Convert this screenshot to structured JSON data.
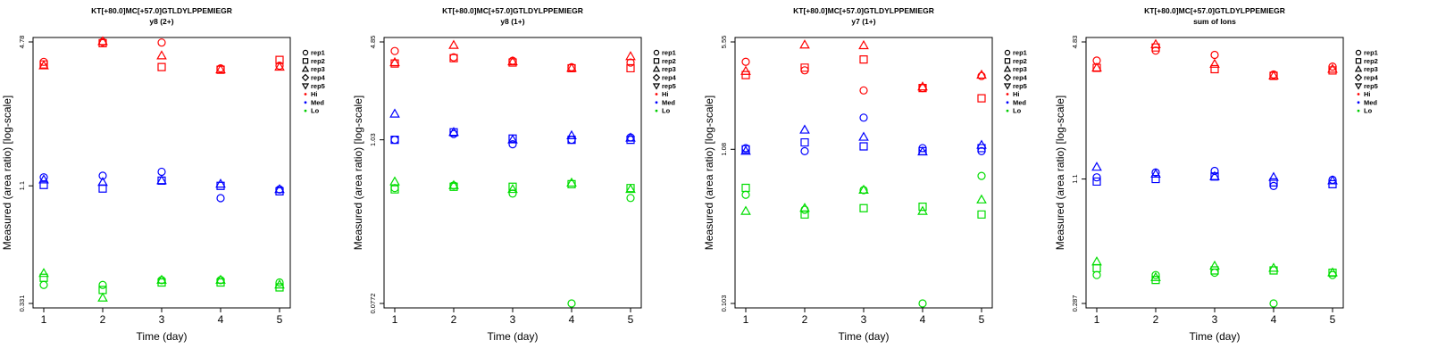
{
  "chart_data": [
    {
      "type": "scatter",
      "title": "KT[+80.0]MC[+57.0]GTLDYLPPEMIEGR",
      "subtitle": "y8 (2+)",
      "xlabel": "Time (day)",
      "ylabel": "Measured (area ratio) [log-scale]",
      "x_ticks": [
        "1",
        "2",
        "3",
        "4",
        "5"
      ],
      "y_ticks": [
        "0.331",
        "1.1",
        "4.78"
      ],
      "ylim": [
        0.331,
        4.78
      ],
      "log_y": true,
      "legend_position": "right",
      "series": [
        {
          "name": "rep1",
          "group": "Hi",
          "shape": "circle",
          "values": [
            [
              1,
              3.9
            ],
            [
              2,
              4.78
            ],
            [
              3,
              4.75
            ],
            [
              4,
              3.65
            ],
            [
              5,
              3.75
            ]
          ]
        },
        {
          "name": "rep2",
          "group": "Hi",
          "shape": "square",
          "values": [
            [
              1,
              3.8
            ],
            [
              2,
              4.72
            ],
            [
              3,
              3.7
            ],
            [
              4,
              3.6
            ],
            [
              5,
              3.98
            ]
          ]
        },
        {
          "name": "rep3",
          "group": "Hi",
          "shape": "triangle-up",
          "values": [
            [
              1,
              3.75
            ],
            [
              2,
              4.8
            ],
            [
              3,
              4.15
            ],
            [
              4,
              3.6
            ],
            [
              5,
              3.7
            ]
          ]
        },
        {
          "name": "rep1",
          "group": "Med",
          "shape": "circle",
          "values": [
            [
              1,
              1.2
            ],
            [
              2,
              1.22
            ],
            [
              3,
              1.27
            ],
            [
              4,
              0.97
            ],
            [
              5,
              1.06
            ]
          ]
        },
        {
          "name": "rep2",
          "group": "Med",
          "shape": "square",
          "values": [
            [
              1,
              1.11
            ],
            [
              2,
              1.07
            ],
            [
              3,
              1.16
            ],
            [
              4,
              1.1
            ],
            [
              5,
              1.04
            ]
          ]
        },
        {
          "name": "rep3",
          "group": "Med",
          "shape": "triangle-up",
          "values": [
            [
              1,
              1.17
            ],
            [
              2,
              1.14
            ],
            [
              3,
              1.16
            ],
            [
              4,
              1.12
            ],
            [
              5,
              1.06
            ]
          ]
        },
        {
          "name": "rep1",
          "group": "Lo",
          "shape": "circle",
          "values": [
            [
              1,
              0.4
            ],
            [
              2,
              0.4
            ],
            [
              3,
              0.42
            ],
            [
              4,
              0.42
            ],
            [
              5,
              0.41
            ]
          ]
        },
        {
          "name": "rep2",
          "group": "Lo",
          "shape": "square",
          "values": [
            [
              1,
              0.43
            ],
            [
              2,
              0.38
            ],
            [
              3,
              0.41
            ],
            [
              4,
              0.41
            ],
            [
              5,
              0.39
            ]
          ]
        },
        {
          "name": "rep3",
          "group": "Lo",
          "shape": "triangle-up",
          "values": [
            [
              1,
              0.45
            ],
            [
              2,
              0.35
            ],
            [
              3,
              0.42
            ],
            [
              4,
              0.42
            ],
            [
              5,
              0.4
            ]
          ]
        }
      ]
    },
    {
      "type": "scatter",
      "title": "KT[+80.0]MC[+57.0]GTLDYLPPEMIEGR",
      "subtitle": "y8 (1+)",
      "xlabel": "Time (day)",
      "ylabel": "Measured (area ratio) [log-scale]",
      "x_ticks": [
        "1",
        "2",
        "3",
        "4",
        "5"
      ],
      "y_ticks": [
        "0.0772",
        "1.03",
        "4.85"
      ],
      "ylim": [
        0.0772,
        4.85
      ],
      "log_y": true,
      "legend_position": "right",
      "series": [
        {
          "name": "rep1",
          "group": "Hi",
          "shape": "circle",
          "values": [
            [
              1,
              4.2
            ],
            [
              2,
              3.8
            ],
            [
              3,
              3.6
            ],
            [
              4,
              3.25
            ],
            [
              5,
              3.5
            ]
          ]
        },
        {
          "name": "rep2",
          "group": "Hi",
          "shape": "square",
          "values": [
            [
              1,
              3.45
            ],
            [
              2,
              3.75
            ],
            [
              3,
              3.5
            ],
            [
              4,
              3.2
            ],
            [
              5,
              3.2
            ]
          ]
        },
        {
          "name": "rep3",
          "group": "Hi",
          "shape": "triangle-up",
          "values": [
            [
              1,
              3.5
            ],
            [
              2,
              4.6
            ],
            [
              3,
              3.55
            ],
            [
              4,
              3.2
            ],
            [
              5,
              3.85
            ]
          ]
        },
        {
          "name": "rep1",
          "group": "Med",
          "shape": "circle",
          "values": [
            [
              1,
              1.03
            ],
            [
              2,
              1.13
            ],
            [
              3,
              0.96
            ],
            [
              4,
              1.03
            ],
            [
              5,
              1.07
            ]
          ]
        },
        {
          "name": "rep2",
          "group": "Med",
          "shape": "square",
          "values": [
            [
              1,
              1.03
            ],
            [
              2,
              1.16
            ],
            [
              3,
              1.05
            ],
            [
              4,
              1.03
            ],
            [
              5,
              1.03
            ]
          ]
        },
        {
          "name": "rep3",
          "group": "Med",
          "shape": "triangle-up",
          "values": [
            [
              1,
              1.55
            ],
            [
              2,
              1.16
            ],
            [
              3,
              1.03
            ],
            [
              4,
              1.1
            ],
            [
              5,
              1.06
            ]
          ]
        },
        {
          "name": "rep1",
          "group": "Lo",
          "shape": "circle",
          "values": [
            [
              1,
              0.48
            ],
            [
              2,
              0.5
            ],
            [
              3,
              0.44
            ],
            [
              4,
              0.0772
            ],
            [
              5,
              0.41
            ]
          ]
        },
        {
          "name": "rep2",
          "group": "Lo",
          "shape": "square",
          "values": [
            [
              1,
              0.47
            ],
            [
              2,
              0.49
            ],
            [
              3,
              0.49
            ],
            [
              4,
              0.51
            ],
            [
              5,
              0.48
            ]
          ]
        },
        {
          "name": "rep3",
          "group": "Lo",
          "shape": "triangle-up",
          "values": [
            [
              1,
              0.53
            ],
            [
              2,
              0.5
            ],
            [
              3,
              0.47
            ],
            [
              4,
              0.52
            ],
            [
              5,
              0.47
            ]
          ]
        }
      ]
    },
    {
      "type": "scatter",
      "title": "KT[+80.0]MC[+57.0]GTLDYLPPEMIEGR",
      "subtitle": "y7 (1+)",
      "xlabel": "Time (day)",
      "ylabel": "Measured (area ratio) [log-scale]",
      "x_ticks": [
        "1",
        "2",
        "3",
        "4",
        "5"
      ],
      "y_ticks": [
        "0.103",
        "1.08",
        "5.55"
      ],
      "ylim": [
        0.103,
        5.55
      ],
      "log_y": true,
      "legend_position": "right",
      "series": [
        {
          "name": "rep1",
          "group": "Hi",
          "shape": "circle",
          "values": [
            [
              1,
              4.1
            ],
            [
              2,
              3.6
            ],
            [
              3,
              2.65
            ],
            [
              4,
              2.75
            ],
            [
              5,
              3.3
            ]
          ]
        },
        {
          "name": "rep2",
          "group": "Hi",
          "shape": "square",
          "values": [
            [
              1,
              3.35
            ],
            [
              2,
              3.75
            ],
            [
              3,
              4.25
            ],
            [
              4,
              2.75
            ],
            [
              5,
              2.35
            ]
          ]
        },
        {
          "name": "rep3",
          "group": "Hi",
          "shape": "triangle-up",
          "values": [
            [
              1,
              3.55
            ],
            [
              2,
              5.3
            ],
            [
              3,
              5.25
            ],
            [
              4,
              2.8
            ],
            [
              5,
              3.35
            ]
          ]
        },
        {
          "name": "rep1",
          "group": "Med",
          "shape": "circle",
          "values": [
            [
              1,
              1.1
            ],
            [
              2,
              1.05
            ],
            [
              3,
              1.75
            ],
            [
              4,
              1.1
            ],
            [
              5,
              1.05
            ]
          ]
        },
        {
          "name": "rep2",
          "group": "Med",
          "shape": "square",
          "values": [
            [
              1,
              1.08
            ],
            [
              2,
              1.2
            ],
            [
              3,
              1.13
            ],
            [
              4,
              1.05
            ],
            [
              5,
              1.1
            ]
          ]
        },
        {
          "name": "rep3",
          "group": "Med",
          "shape": "triangle-up",
          "values": [
            [
              1,
              1.05
            ],
            [
              2,
              1.45
            ],
            [
              3,
              1.3
            ],
            [
              4,
              1.04
            ],
            [
              5,
              1.15
            ]
          ]
        },
        {
          "name": "rep1",
          "group": "Lo",
          "shape": "circle",
          "values": [
            [
              1,
              0.54
            ],
            [
              2,
              0.43
            ],
            [
              3,
              0.58
            ],
            [
              4,
              0.103
            ],
            [
              5,
              0.72
            ]
          ]
        },
        {
          "name": "rep2",
          "group": "Lo",
          "shape": "square",
          "values": [
            [
              1,
              0.6
            ],
            [
              2,
              0.4
            ],
            [
              3,
              0.44
            ],
            [
              4,
              0.45
            ],
            [
              5,
              0.4
            ]
          ]
        },
        {
          "name": "rep3",
          "group": "Lo",
          "shape": "triangle-up",
          "values": [
            [
              1,
              0.42
            ],
            [
              2,
              0.44
            ],
            [
              3,
              0.58
            ],
            [
              4,
              0.42
            ],
            [
              5,
              0.5
            ]
          ]
        }
      ]
    },
    {
      "type": "scatter",
      "title": "KT[+80.0]MC[+57.0]GTLDYLPPEMIEGR",
      "subtitle": "sum of Ions",
      "xlabel": "Time (day)",
      "ylabel": "Measured (area ratio) [log-scale]",
      "x_ticks": [
        "1",
        "2",
        "3",
        "4",
        "5"
      ],
      "y_ticks": [
        "0.287",
        "1.1",
        "4.83"
      ],
      "ylim": [
        0.287,
        4.83
      ],
      "log_y": true,
      "legend_position": "right",
      "series": [
        {
          "name": "rep1",
          "group": "Hi",
          "shape": "circle",
          "values": [
            [
              1,
              3.95
            ],
            [
              2,
              4.4
            ],
            [
              3,
              4.2
            ],
            [
              4,
              3.4
            ],
            [
              5,
              3.7
            ]
          ]
        },
        {
          "name": "rep2",
          "group": "Hi",
          "shape": "square",
          "values": [
            [
              1,
              3.65
            ],
            [
              2,
              4.55
            ],
            [
              3,
              3.6
            ],
            [
              4,
              3.35
            ],
            [
              5,
              3.55
            ]
          ]
        },
        {
          "name": "rep3",
          "group": "Hi",
          "shape": "triangle-up",
          "values": [
            [
              1,
              3.65
            ],
            [
              2,
              4.7
            ],
            [
              3,
              3.8
            ],
            [
              4,
              3.35
            ],
            [
              5,
              3.6
            ]
          ]
        },
        {
          "name": "rep1",
          "group": "Med",
          "shape": "circle",
          "values": [
            [
              1,
              1.12
            ],
            [
              2,
              1.18
            ],
            [
              3,
              1.2
            ],
            [
              4,
              1.02
            ],
            [
              5,
              1.09
            ]
          ]
        },
        {
          "name": "rep2",
          "group": "Med",
          "shape": "square",
          "values": [
            [
              1,
              1.07
            ],
            [
              2,
              1.1
            ],
            [
              3,
              1.13
            ],
            [
              4,
              1.06
            ],
            [
              5,
              1.04
            ]
          ]
        },
        {
          "name": "rep3",
          "group": "Med",
          "shape": "triangle-up",
          "values": [
            [
              1,
              1.25
            ],
            [
              2,
              1.16
            ],
            [
              3,
              1.13
            ],
            [
              4,
              1.12
            ],
            [
              5,
              1.08
            ]
          ]
        },
        {
          "name": "rep1",
          "group": "Lo",
          "shape": "circle",
          "values": [
            [
              1,
              0.39
            ],
            [
              2,
              0.39
            ],
            [
              3,
              0.4
            ],
            [
              4,
              0.287
            ],
            [
              5,
              0.39
            ]
          ]
        },
        {
          "name": "rep2",
          "group": "Lo",
          "shape": "square",
          "values": [
            [
              1,
              0.42
            ],
            [
              2,
              0.37
            ],
            [
              3,
              0.41
            ],
            [
              4,
              0.41
            ],
            [
              5,
              0.4
            ]
          ]
        },
        {
          "name": "rep3",
          "group": "Lo",
          "shape": "triangle-up",
          "values": [
            [
              1,
              0.45
            ],
            [
              2,
              0.38
            ],
            [
              3,
              0.43
            ],
            [
              4,
              0.42
            ],
            [
              5,
              0.4
            ]
          ]
        }
      ]
    }
  ],
  "legend": {
    "items": [
      {
        "label": "rep1",
        "kind": "shape",
        "shape": "circle"
      },
      {
        "label": "rep2",
        "kind": "shape",
        "shape": "square"
      },
      {
        "label": "rep3",
        "kind": "shape",
        "shape": "triangle-up"
      },
      {
        "label": "rep4",
        "kind": "shape",
        "shape": "diamond"
      },
      {
        "label": "rep5",
        "kind": "shape",
        "shape": "triangle-down"
      },
      {
        "label": "Hi",
        "kind": "dot",
        "color": "#ff0000"
      },
      {
        "label": "Med",
        "kind": "dot",
        "color": "#0000ff"
      },
      {
        "label": "Lo",
        "kind": "dot",
        "color": "#00cc00"
      }
    ]
  },
  "colors": {
    "Hi": "#ff0000",
    "Med": "#0000ff",
    "Lo": "#00dd00",
    "axis": "#000000"
  }
}
